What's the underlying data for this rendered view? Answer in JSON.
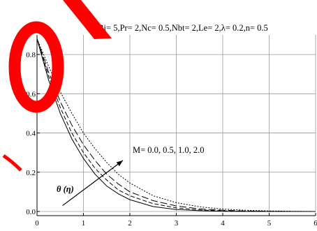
{
  "chart_data": {
    "type": "line",
    "title": "Bi= 5,Pr= 2,Nc= 0.5,Nbt= 2,Le= 2,λ= 0.2,n= 0.5",
    "xlabel": "",
    "ylabel": "",
    "xlim": [
      0,
      6
    ],
    "ylim": [
      0,
      0.9
    ],
    "x_ticks": [
      0,
      1,
      2,
      3,
      4,
      5,
      6
    ],
    "x_tick_labels": [
      "0",
      "1",
      "2",
      "3",
      "4",
      "5",
      "6"
    ],
    "y_ticks": [
      0,
      0.2,
      0.4,
      0.6,
      0.8
    ],
    "y_tick_labels": [
      "0.0",
      "0.2",
      "0.4",
      "0.6",
      "0.8"
    ],
    "grid": true,
    "series": [
      {
        "name": "M=0.0",
        "style": "solid",
        "x": [
          0,
          0.25,
          0.5,
          0.75,
          1.0,
          1.25,
          1.5,
          1.75,
          2.0,
          2.5,
          3.0,
          3.5,
          4.0,
          4.5,
          5.0,
          5.5,
          6.0
        ],
        "y": [
          0.88,
          0.67,
          0.5,
          0.37,
          0.27,
          0.19,
          0.13,
          0.09,
          0.06,
          0.025,
          0.01,
          0.004,
          0.001,
          0.0,
          0.0,
          0.0,
          0.0
        ]
      },
      {
        "name": "M=0.5",
        "style": "dashed",
        "x": [
          0,
          0.25,
          0.5,
          0.75,
          1.0,
          1.25,
          1.5,
          1.75,
          2.0,
          2.5,
          3.0,
          3.5,
          4.0,
          4.5,
          5.0,
          5.5,
          6.0
        ],
        "y": [
          0.88,
          0.69,
          0.53,
          0.4,
          0.3,
          0.22,
          0.16,
          0.11,
          0.08,
          0.04,
          0.018,
          0.008,
          0.003,
          0.001,
          0.0,
          0.0,
          0.0
        ]
      },
      {
        "name": "M=1.0",
        "style": "longdash",
        "x": [
          0,
          0.25,
          0.5,
          0.75,
          1.0,
          1.25,
          1.5,
          1.75,
          2.0,
          2.5,
          3.0,
          3.5,
          4.0,
          4.5,
          5.0,
          5.5,
          6.0
        ],
        "y": [
          0.88,
          0.71,
          0.56,
          0.44,
          0.34,
          0.26,
          0.19,
          0.14,
          0.1,
          0.055,
          0.028,
          0.013,
          0.006,
          0.002,
          0.001,
          0.0,
          0.0
        ]
      },
      {
        "name": "M=2.0",
        "style": "dotted",
        "x": [
          0,
          0.25,
          0.5,
          0.75,
          1.0,
          1.25,
          1.5,
          1.75,
          2.0,
          2.5,
          3.0,
          3.5,
          4.0,
          4.5,
          5.0,
          5.5,
          6.0
        ],
        "y": [
          0.88,
          0.74,
          0.61,
          0.5,
          0.4,
          0.32,
          0.25,
          0.19,
          0.145,
          0.08,
          0.045,
          0.024,
          0.012,
          0.006,
          0.003,
          0.001,
          0.0
        ]
      }
    ],
    "annotations": {
      "parameter": "M= 0.0, 0.5, 1.0, 2.0",
      "curve_label": "θ (η)"
    },
    "arrow": {
      "from": {
        "x": 0.55,
        "y": 0.03
      },
      "to": {
        "x": 1.85,
        "y": 0.26
      }
    },
    "watermark": {
      "color": "#ff0000"
    }
  }
}
